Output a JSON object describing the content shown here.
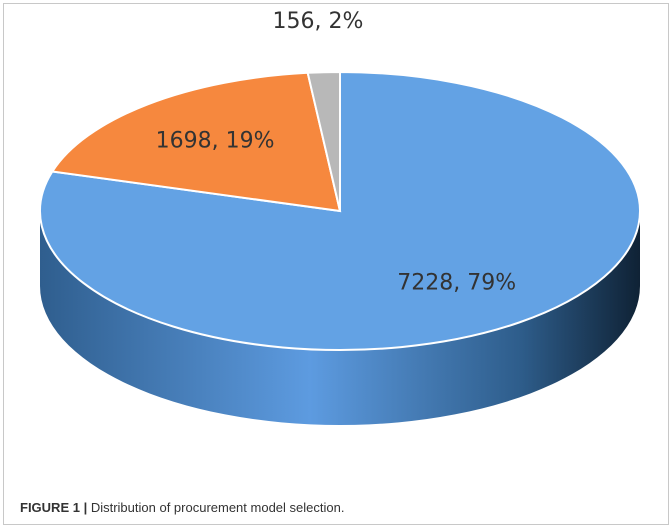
{
  "chart_data": {
    "type": "pie",
    "values": [
      7228,
      1698,
      156
    ],
    "value_labels": [
      "7228, 79%",
      "1698, 19%",
      "156, 2%"
    ],
    "colors": [
      "#63a2e4",
      "#f6883e",
      "#b8b8b8"
    ],
    "caption_label": "FIGURE 1 |",
    "caption": "Distribution of procurement model selection."
  }
}
